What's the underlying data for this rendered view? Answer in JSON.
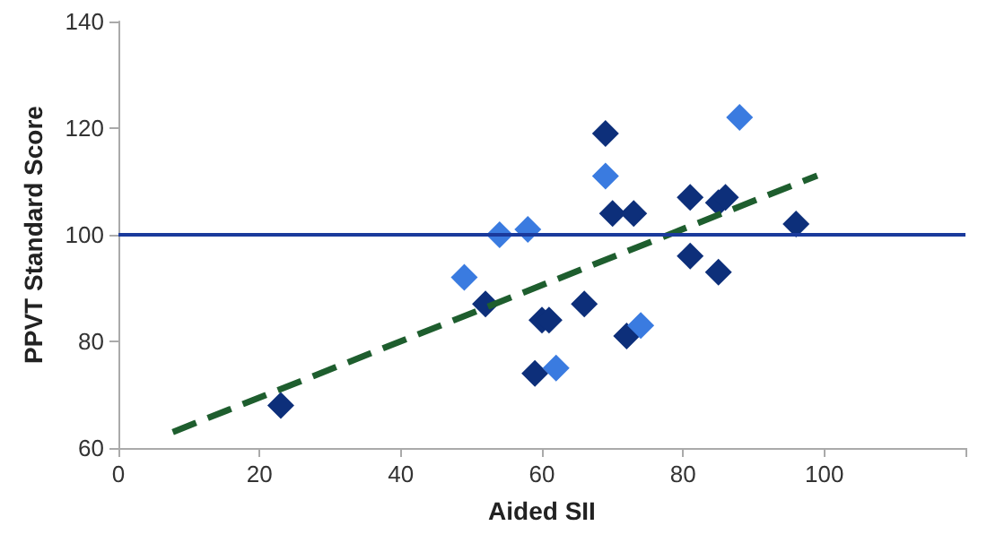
{
  "chart_data": {
    "type": "scatter",
    "xlabel": "Aided SII",
    "ylabel": "PPVT Standard Score",
    "xlim": [
      0,
      120
    ],
    "xticks": [
      0,
      20,
      40,
      60,
      80,
      100,
      {
        "value": 120,
        "label": null
      }
    ],
    "ylim": [
      60,
      140
    ],
    "yticks": [
      60,
      80,
      100,
      120,
      140
    ],
    "grid": false,
    "marker": "diamond",
    "series": [
      {
        "color": "#0d2f7a",
        "x": [
          23,
          52,
          59,
          60,
          61,
          66,
          69,
          70,
          73,
          72,
          81,
          81,
          85,
          86,
          85,
          96
        ],
        "values": [
          68,
          87,
          74,
          84,
          84,
          87,
          119,
          104,
          104,
          81,
          107,
          96,
          106,
          107,
          93,
          102
        ]
      },
      {
        "color": "#3a7be0",
        "x": [
          49,
          54,
          58,
          62,
          69,
          74,
          88
        ],
        "values": [
          92,
          100,
          101,
          75,
          111,
          83,
          122
        ]
      },
      {
        "type": "line",
        "color": "#1e5e2e",
        "line_style": "dashed",
        "marker": "none",
        "x": [
          7.7,
          99
        ],
        "values": [
          63,
          111.1
        ]
      }
    ],
    "ref_lines": [
      {
        "axis": "y",
        "value": 100,
        "color": "#1a3a9c",
        "line_style": "solid"
      }
    ]
  }
}
